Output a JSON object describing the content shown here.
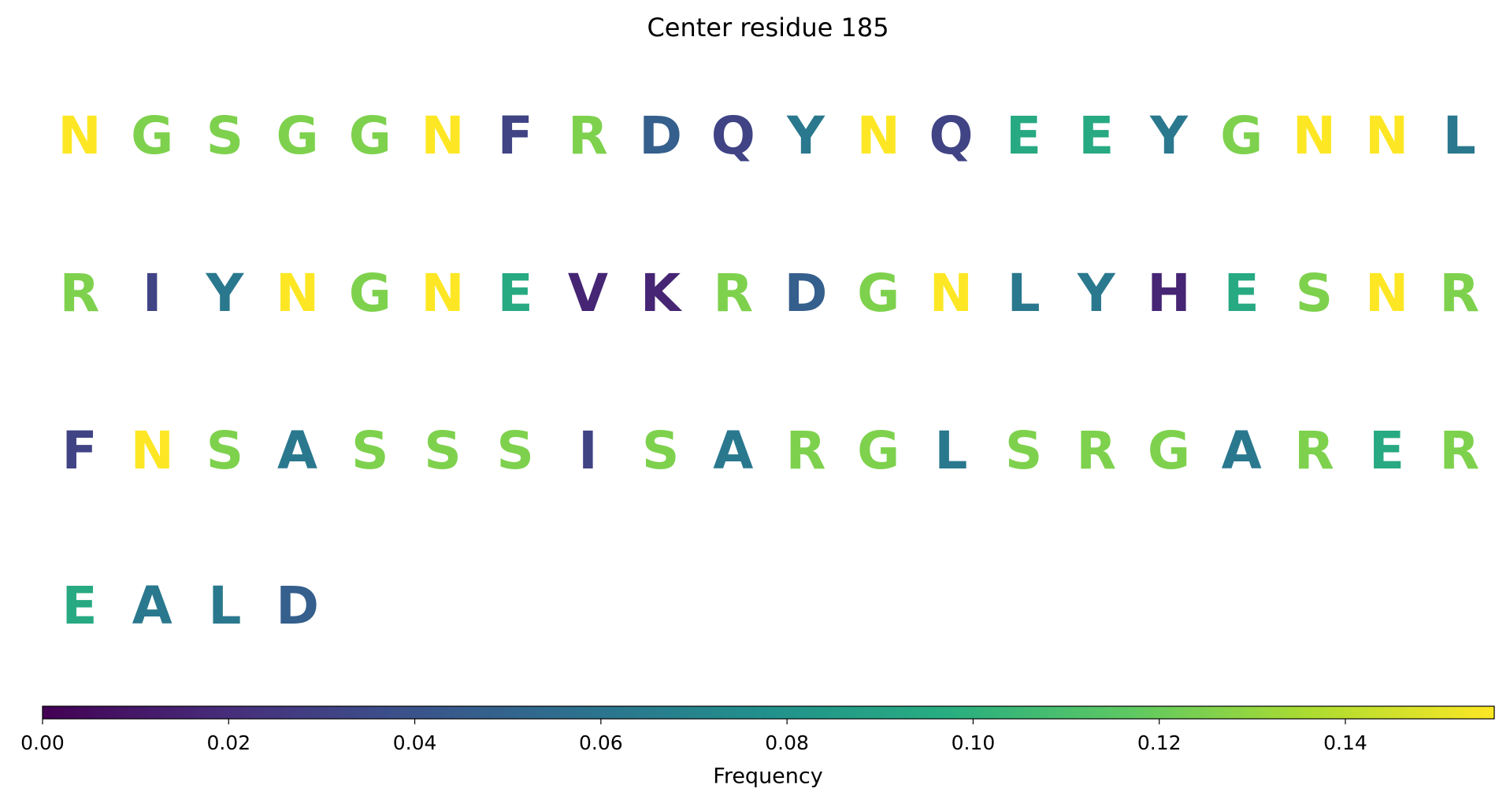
{
  "chart_data": {
    "type": "sequence",
    "title": "Center residue 185",
    "residues": [
      "N",
      "G",
      "S",
      "G",
      "G",
      "N",
      "F",
      "R",
      "D",
      "Q",
      "Y",
      "N",
      "Q",
      "E",
      "E",
      "Y",
      "G",
      "N",
      "N",
      "L",
      "R",
      "I",
      "Y",
      "N",
      "G",
      "N",
      "E",
      "V",
      "K",
      "R",
      "D",
      "G",
      "N",
      "L",
      "Y",
      "H",
      "E",
      "S",
      "N",
      "R",
      "F",
      "N",
      "S",
      "A",
      "S",
      "S",
      "S",
      "I",
      "S",
      "A",
      "R",
      "G",
      "L",
      "S",
      "R",
      "G",
      "A",
      "R",
      "E",
      "R",
      "E",
      "A",
      "L",
      "D"
    ],
    "values": [
      0.156,
      0.125,
      0.125,
      0.125,
      0.125,
      0.156,
      0.031,
      0.125,
      0.047,
      0.031,
      0.062,
      0.156,
      0.031,
      0.094,
      0.094,
      0.062,
      0.125,
      0.156,
      0.156,
      0.062,
      0.125,
      0.031,
      0.062,
      0.156,
      0.125,
      0.156,
      0.094,
      0.016,
      0.016,
      0.125,
      0.047,
      0.125,
      0.156,
      0.062,
      0.062,
      0.016,
      0.094,
      0.125,
      0.156,
      0.125,
      0.031,
      0.156,
      0.125,
      0.062,
      0.125,
      0.125,
      0.125,
      0.031,
      0.125,
      0.062,
      0.125,
      0.125,
      0.062,
      0.125,
      0.125,
      0.125,
      0.062,
      0.125,
      0.094,
      0.125,
      0.094,
      0.062,
      0.062,
      0.047
    ],
    "colormap": "viridis",
    "colorbar_label": "Frequency",
    "clim": [
      0,
      0.156
    ],
    "cticks": [
      {
        "value": 0,
        "label": "0.00"
      },
      {
        "value": 0.02,
        "label": "0.02"
      },
      {
        "value": 0.04,
        "label": "0.04"
      },
      {
        "value": 0.06,
        "label": "0.06"
      },
      {
        "value": 0.08,
        "label": "0.08"
      },
      {
        "value": 0.1,
        "label": "0.10"
      },
      {
        "value": 0.12,
        "label": "0.12"
      },
      {
        "value": 0.14,
        "label": "0.14"
      }
    ]
  }
}
